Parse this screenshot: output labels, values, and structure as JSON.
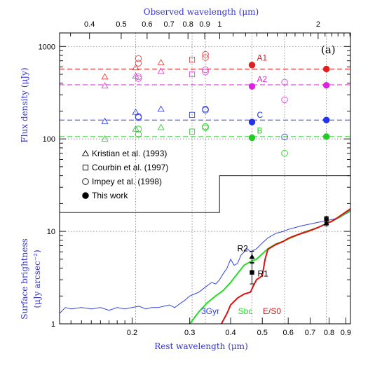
{
  "chart_data": {
    "type": "scatter",
    "panel_label": "(a)",
    "x_scale": "log",
    "y_scale": "log",
    "xlim": [
      0.12,
      0.93
    ],
    "ylim": [
      1,
      1400
    ],
    "xlabel": "Rest wavelength (μm)",
    "xlabel_top": "Observed wavelength (μm)",
    "ylabel_upper": "Flux density (μJy)",
    "ylabel_lower_1": "Surface brightness",
    "ylabel_lower_2": "(μJy arcsec⁻²)",
    "x_ticks_bottom": [
      0.2,
      0.3,
      0.4,
      0.5,
      0.6,
      0.7,
      0.8,
      0.9
    ],
    "x_tick_labels_bottom": [
      "0.2",
      "0.3",
      "0.4",
      "0.5",
      "0.6",
      "0.7",
      "0.8",
      "0.9"
    ],
    "top_axis_redshift_factor": 2.7,
    "x_ticks_top": [
      0.4,
      0.5,
      0.6,
      0.7,
      0.8,
      0.9,
      1,
      2
    ],
    "x_tick_labels_top": [
      "0.4",
      "0.5",
      "0.6",
      "0.7",
      "0.8",
      "0.9",
      "1",
      "2"
    ],
    "y_ticks": [
      1,
      10,
      100,
      1000
    ],
    "y_tick_labels": [
      "1",
      "10",
      "100",
      "1000"
    ],
    "vertical_dotted_lines_x": [
      0.205,
      0.305,
      0.335,
      0.465,
      0.585,
      0.785
    ],
    "reference_levels": [
      {
        "name": "A1",
        "value": 570,
        "color": "#e0201e"
      },
      {
        "name": "A2",
        "value": 385,
        "color": "#dd22dd"
      },
      {
        "name": "C",
        "value": 160,
        "color": "#2233ee"
      },
      {
        "name": "B",
        "value": 106,
        "color": "#22cc22"
      }
    ],
    "observed": [
      {
        "marker": "triangle",
        "x": 0.165,
        "y": 470,
        "color": "#ee4444"
      },
      {
        "marker": "triangle",
        "x": 0.165,
        "y": 375,
        "color": "#dd44dd"
      },
      {
        "marker": "triangle",
        "x": 0.165,
        "y": 155,
        "color": "#3344ee"
      },
      {
        "marker": "triangle",
        "x": 0.165,
        "y": 100,
        "color": "#33cc33"
      },
      {
        "marker": "triangle",
        "x": 0.205,
        "y": 590,
        "color": "#ee4444"
      },
      {
        "marker": "triangle",
        "x": 0.205,
        "y": 480,
        "color": "#dd44dd"
      },
      {
        "marker": "triangle",
        "x": 0.205,
        "y": 195,
        "color": "#3344ee"
      },
      {
        "marker": "triangle",
        "x": 0.205,
        "y": 128,
        "color": "#33cc33"
      },
      {
        "marker": "triangle",
        "x": 0.245,
        "y": 670,
        "color": "#ee4444"
      },
      {
        "marker": "triangle",
        "x": 0.245,
        "y": 540,
        "color": "#dd44dd"
      },
      {
        "marker": "triangle",
        "x": 0.245,
        "y": 210,
        "color": "#3344ee"
      },
      {
        "marker": "triangle",
        "x": 0.245,
        "y": 133,
        "color": "#33cc33"
      },
      {
        "marker": "square",
        "x": 0.305,
        "y": 720,
        "color": "#ee4444"
      },
      {
        "marker": "square",
        "x": 0.305,
        "y": 500,
        "color": "#dd44dd"
      },
      {
        "marker": "square",
        "x": 0.305,
        "y": 182,
        "color": "#3344ee"
      },
      {
        "marker": "square",
        "x": 0.305,
        "y": 120,
        "color": "#33cc33"
      },
      {
        "marker": "circle",
        "x": 0.209,
        "y": 740,
        "color": "#ee4444"
      },
      {
        "marker": "circle",
        "x": 0.209,
        "y": 660,
        "color": "#ee4444"
      },
      {
        "marker": "circle",
        "x": 0.209,
        "y": 470,
        "color": "#dd44dd"
      },
      {
        "marker": "circle",
        "x": 0.209,
        "y": 450,
        "color": "#dd44dd"
      },
      {
        "marker": "circle",
        "x": 0.209,
        "y": 175,
        "color": "#3344ee"
      },
      {
        "marker": "circle",
        "x": 0.209,
        "y": 170,
        "color": "#3344ee"
      },
      {
        "marker": "circle",
        "x": 0.209,
        "y": 128,
        "color": "#33cc33"
      },
      {
        "marker": "circle",
        "x": 0.209,
        "y": 112,
        "color": "#33cc33"
      },
      {
        "marker": "circle",
        "x": 0.335,
        "y": 820,
        "color": "#ee4444"
      },
      {
        "marker": "circle",
        "x": 0.335,
        "y": 760,
        "color": "#ee4444"
      },
      {
        "marker": "circle",
        "x": 0.335,
        "y": 560,
        "color": "#dd44dd"
      },
      {
        "marker": "circle",
        "x": 0.335,
        "y": 530,
        "color": "#dd44dd"
      },
      {
        "marker": "circle",
        "x": 0.335,
        "y": 210,
        "color": "#3344ee"
      },
      {
        "marker": "circle",
        "x": 0.335,
        "y": 205,
        "color": "#3344ee"
      },
      {
        "marker": "circle",
        "x": 0.335,
        "y": 136,
        "color": "#33cc33"
      },
      {
        "marker": "circle",
        "x": 0.335,
        "y": 132,
        "color": "#33cc33"
      },
      {
        "marker": "circle",
        "x": 0.585,
        "y": 410,
        "color": "#dd44dd"
      },
      {
        "marker": "circle",
        "x": 0.585,
        "y": 265,
        "color": "#dd44dd"
      },
      {
        "marker": "circle",
        "x": 0.585,
        "y": 105,
        "color": "#3344ee"
      },
      {
        "marker": "circle",
        "x": 0.585,
        "y": 70,
        "color": "#33cc33"
      }
    ],
    "this_work": [
      {
        "name": "A1",
        "x": 0.465,
        "y": 630,
        "color": "#e0201e"
      },
      {
        "name": "A2",
        "x": 0.465,
        "y": 370,
        "color": "#dd22dd"
      },
      {
        "name": "C",
        "x": 0.465,
        "y": 152,
        "color": "#2233ee"
      },
      {
        "name": "B",
        "x": 0.465,
        "y": 103,
        "color": "#22cc22"
      },
      {
        "name": "",
        "x": 0.785,
        "y": 570,
        "color": "#e0201e"
      },
      {
        "name": "",
        "x": 0.785,
        "y": 380,
        "color": "#dd22dd"
      },
      {
        "name": "",
        "x": 0.785,
        "y": 160,
        "color": "#2233ee"
      },
      {
        "name": "",
        "x": 0.785,
        "y": 106,
        "color": "#22cc22"
      }
    ],
    "surface_brightness": [
      {
        "name": "R2",
        "x": 0.465,
        "y": 5.3,
        "yerr_low": 4.5,
        "yerr_high": 6.1,
        "marker": "triangle"
      },
      {
        "name": "R1",
        "x": 0.465,
        "y": 3.6,
        "yerr_low": 2.7,
        "yerr_high": 4.6,
        "marker": "square"
      },
      {
        "name": "",
        "x": 0.785,
        "y": 13.5,
        "yerr_low": 12.5,
        "yerr_high": 14.5,
        "marker": "square"
      },
      {
        "name": "",
        "x": 0.785,
        "y": 12.3,
        "yerr_low": 11.5,
        "yerr_high": 13.3,
        "marker": "triangle"
      }
    ],
    "step_line": {
      "x": [
        0.12,
        0.37,
        0.37,
        0.93
      ],
      "y": [
        16,
        16,
        40,
        40
      ],
      "color": "#000000"
    },
    "templates": [
      {
        "name": "3Gyr",
        "color": "#3344dd",
        "x": [
          0.12,
          0.125,
          0.13,
          0.14,
          0.15,
          0.16,
          0.17,
          0.18,
          0.19,
          0.2,
          0.21,
          0.22,
          0.23,
          0.24,
          0.25,
          0.26,
          0.27,
          0.28,
          0.29,
          0.3,
          0.31,
          0.32,
          0.33,
          0.34,
          0.35,
          0.36,
          0.37,
          0.38,
          0.39,
          0.4,
          0.41,
          0.42,
          0.43,
          0.44,
          0.45,
          0.46,
          0.48,
          0.5,
          0.52,
          0.55,
          0.58,
          0.6,
          0.63,
          0.66,
          0.7,
          0.74,
          0.78,
          0.82,
          0.86,
          0.9,
          0.93
        ],
        "y": [
          1.3,
          1.5,
          1.45,
          1.5,
          1.45,
          1.5,
          1.4,
          1.5,
          1.45,
          1.5,
          1.55,
          1.45,
          1.5,
          1.5,
          1.55,
          1.6,
          1.5,
          1.65,
          1.8,
          2.0,
          2.1,
          2.2,
          2.4,
          2.6,
          2.8,
          2.7,
          3.0,
          3.5,
          4.0,
          5.0,
          4.3,
          4.5,
          5.5,
          6.0,
          6.5,
          6.0,
          6.5,
          7.5,
          8.5,
          9.5,
          10.0,
          10.5,
          11.0,
          11.5,
          12.0,
          12.5,
          13.0,
          13.5,
          14.0,
          15.5,
          16.5
        ]
      },
      {
        "name": "Sbc",
        "color": "#22dd22",
        "x": [
          0.3,
          0.32,
          0.34,
          0.36,
          0.38,
          0.4,
          0.42,
          0.44,
          0.46,
          0.48,
          0.5,
          0.52,
          0.55,
          0.58,
          0.6,
          0.63,
          0.66,
          0.7,
          0.74,
          0.78,
          0.82,
          0.86,
          0.9,
          0.93
        ],
        "y": [
          1.0,
          1.35,
          1.7,
          2.0,
          2.3,
          2.8,
          3.5,
          4.3,
          4.7,
          5.0,
          5.7,
          6.5,
          7.3,
          7.8,
          8.3,
          8.9,
          9.6,
          10.3,
          11.0,
          12.0,
          13.0,
          14.2,
          15.8,
          16.8
        ]
      },
      {
        "name": "E/S0",
        "color": "#dd1111",
        "x": [
          0.375,
          0.39,
          0.4,
          0.42,
          0.44,
          0.46,
          0.47,
          0.48,
          0.5,
          0.51,
          0.52,
          0.55,
          0.58,
          0.6,
          0.63,
          0.66,
          0.7,
          0.74,
          0.78,
          0.82,
          0.86,
          0.9,
          0.93
        ],
        "y": [
          1.0,
          1.3,
          1.6,
          1.9,
          2.1,
          2.2,
          2.6,
          3.0,
          3.3,
          5.0,
          6.4,
          7.2,
          7.8,
          8.4,
          9.0,
          9.5,
          10.2,
          11.0,
          12.0,
          13.0,
          14.5,
          16.2,
          17.5
        ]
      }
    ],
    "legend": [
      {
        "marker": "triangle",
        "label": "Kristian et al. (1993)"
      },
      {
        "marker": "square",
        "label": "Courbin et al. (1997)"
      },
      {
        "marker": "circle",
        "label": "Impey et al. (1998)"
      },
      {
        "marker": "filled-circle",
        "label": "This work"
      }
    ]
  }
}
